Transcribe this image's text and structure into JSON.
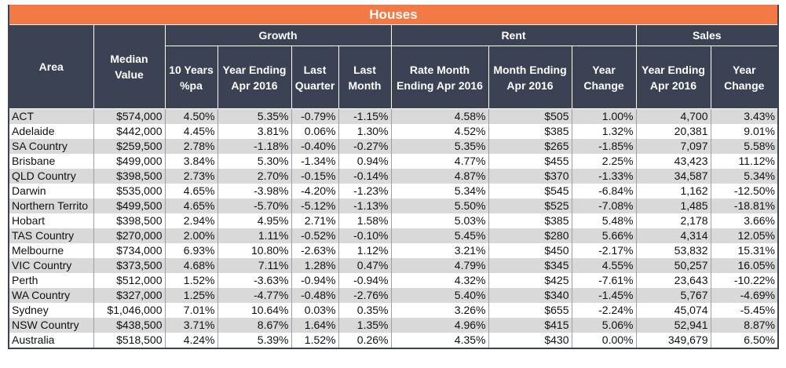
{
  "title": "Houses",
  "groups": {
    "growth": "Growth",
    "rent": "Rent",
    "sales": "Sales"
  },
  "columns": {
    "area": "Area",
    "median": "Median Value",
    "ten_years": "10 Years %pa",
    "year_ending": "Year Ending Apr 2016",
    "last_quarter": "Last Quarter",
    "last_month": "Last Month",
    "rate_month": "Rate Month Ending Apr 2016",
    "month_ending": "Month Ending Apr 2016",
    "rent_year_change": "Year Change",
    "sales_year_ending": "Year Ending Apr 2016",
    "sales_year_change": "Year Change"
  },
  "rows": [
    [
      "ACT",
      "$574,000",
      "4.50%",
      "5.35%",
      "-0.79%",
      "-1.15%",
      "4.58%",
      "$505",
      "1.00%",
      "4,700",
      "3.43%"
    ],
    [
      "Adelaide",
      "$442,000",
      "4.45%",
      "3.81%",
      "0.06%",
      "1.30%",
      "4.52%",
      "$385",
      "1.32%",
      "20,381",
      "9.01%"
    ],
    [
      "SA Country",
      "$259,500",
      "2.78%",
      "-1.18%",
      "-0.40%",
      "-0.27%",
      "5.35%",
      "$265",
      "-1.85%",
      "7,097",
      "5.58%"
    ],
    [
      "Brisbane",
      "$499,000",
      "3.84%",
      "5.30%",
      "-1.34%",
      "0.94%",
      "4.77%",
      "$455",
      "2.25%",
      "43,423",
      "11.12%"
    ],
    [
      "QLD Country",
      "$398,500",
      "2.73%",
      "2.70%",
      "-0.15%",
      "-0.14%",
      "4.87%",
      "$370",
      "-1.33%",
      "34,587",
      "5.34%"
    ],
    [
      "Darwin",
      "$535,000",
      "4.65%",
      "-3.98%",
      "-4.20%",
      "-1.23%",
      "5.34%",
      "$545",
      "-6.84%",
      "1,162",
      "-12.50%"
    ],
    [
      "Northern Territo",
      "$499,500",
      "4.65%",
      "-5.70%",
      "-5.12%",
      "-1.13%",
      "5.50%",
      "$525",
      "-7.08%",
      "1,485",
      "-18.81%"
    ],
    [
      "Hobart",
      "$398,500",
      "2.94%",
      "4.95%",
      "2.71%",
      "1.58%",
      "5.03%",
      "$385",
      "5.48%",
      "2,178",
      "3.66%"
    ],
    [
      "TAS Country",
      "$270,000",
      "2.00%",
      "1.11%",
      "-0.52%",
      "-0.10%",
      "5.45%",
      "$280",
      "5.66%",
      "4,314",
      "12.05%"
    ],
    [
      "Melbourne",
      "$734,000",
      "6.93%",
      "10.80%",
      "-2.63%",
      "1.12%",
      "3.21%",
      "$450",
      "-2.17%",
      "53,832",
      "15.31%"
    ],
    [
      "VIC Country",
      "$373,500",
      "4.68%",
      "7.11%",
      "1.28%",
      "0.47%",
      "4.79%",
      "$345",
      "4.55%",
      "50,257",
      "16.05%"
    ],
    [
      "Perth",
      "$512,000",
      "1.52%",
      "-3.63%",
      "-0.94%",
      "-0.94%",
      "4.32%",
      "$425",
      "-7.61%",
      "23,643",
      "-10.22%"
    ],
    [
      "WA Country",
      "$327,000",
      "1.25%",
      "-4.77%",
      "-0.48%",
      "-2.76%",
      "5.40%",
      "$340",
      "-1.45%",
      "5,767",
      "-4.69%"
    ],
    [
      "Sydney",
      "$1,046,000",
      "7.01%",
      "10.64%",
      "0.03%",
      "0.35%",
      "3.26%",
      "$655",
      "-2.24%",
      "45,074",
      "-5.45%"
    ],
    [
      "NSW Country",
      "$438,500",
      "3.71%",
      "8.67%",
      "1.64%",
      "1.35%",
      "4.96%",
      "$415",
      "5.06%",
      "52,941",
      "8.87%"
    ],
    [
      "Australia",
      "$518,500",
      "4.24%",
      "5.39%",
      "1.52%",
      "0.26%",
      "4.35%",
      "$430",
      "0.00%",
      "349,679",
      "6.50%"
    ]
  ],
  "colors": {
    "title_bg": "#f47a45",
    "header_bg": "#3a4253",
    "stripe": "#d9d9d9"
  }
}
